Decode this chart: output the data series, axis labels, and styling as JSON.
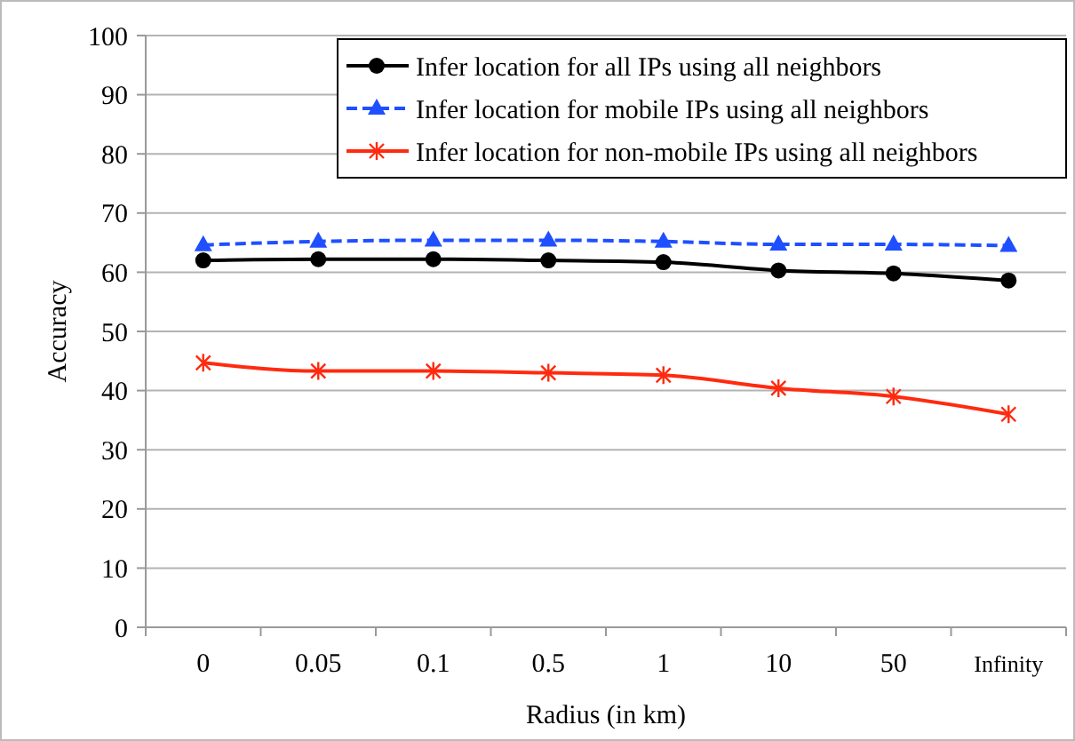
{
  "chart_data": {
    "type": "line",
    "xlabel": "Radius (in km)",
    "ylabel": "Accuracy",
    "categories": [
      "0",
      "0.05",
      "0.1",
      "0.5",
      "1",
      "10",
      "50",
      "Infinity"
    ],
    "series": [
      {
        "name": "Infer location for all IPs using all neighbors",
        "color": "#000000",
        "marker": "circle",
        "line_style": "solid",
        "values": [
          62.0,
          62.2,
          62.2,
          62.0,
          61.7,
          60.3,
          59.8,
          58.6
        ]
      },
      {
        "name": "Infer location for mobile IPs using all neighbors",
        "color": "#1f4fff",
        "marker": "triangle",
        "line_style": "dashed",
        "values": [
          64.6,
          65.2,
          65.4,
          65.4,
          65.2,
          64.7,
          64.7,
          64.5
        ]
      },
      {
        "name": "Infer location for non-mobile IPs using all neighbors",
        "color": "#ff2a0f",
        "marker": "cross",
        "line_style": "solid",
        "values": [
          44.7,
          43.3,
          43.3,
          43.0,
          42.6,
          40.4,
          39.0,
          36.0
        ]
      }
    ],
    "ylim": [
      0,
      100
    ],
    "yticks": [
      0,
      10,
      20,
      30,
      40,
      50,
      60,
      70,
      80,
      90,
      100
    ],
    "grid": "y",
    "legend": "top right"
  }
}
